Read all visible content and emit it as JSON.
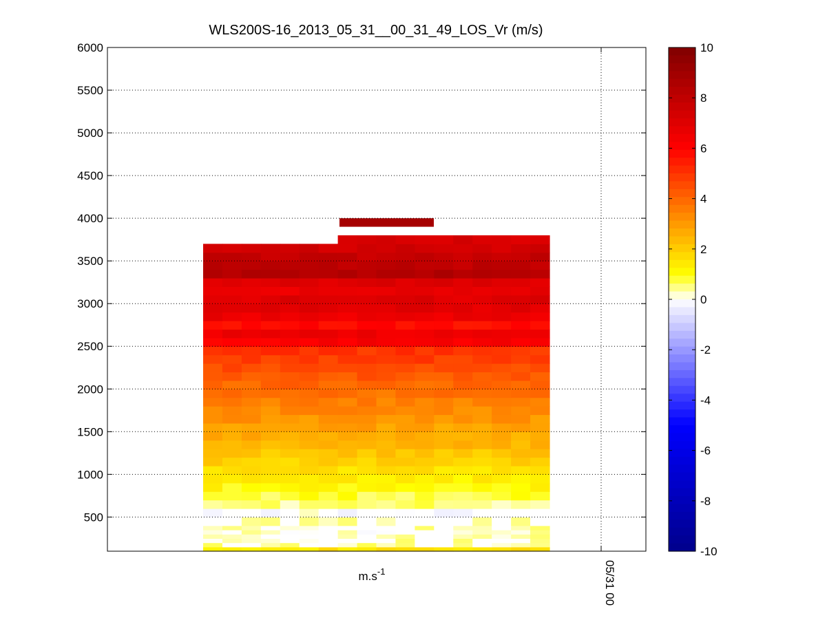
{
  "chart_data": {
    "type": "heatmap",
    "title": "WLS200S-16_2013_05_31__00_31_49_LOS_Vr (m/s)",
    "xlabel": "m.s",
    "xlabel_exponent": "-1",
    "x_tick_labels": [
      "05/31 00"
    ],
    "ylim": [
      100,
      6000
    ],
    "y_ticks": [
      500,
      1000,
      1500,
      2000,
      2500,
      3000,
      3500,
      4000,
      4500,
      5000,
      5500,
      6000
    ],
    "grid": true,
    "colorbar": {
      "range": [
        -10,
        10
      ],
      "ticks": [
        -10,
        -8,
        -6,
        -4,
        -2,
        0,
        2,
        4,
        6,
        8,
        10
      ],
      "colormap": "blue-white-yellow-red",
      "colors": {
        "min": "#00008b",
        "neg": "#0000ff",
        "zero": "#ffffff",
        "pos_low": "#ffff00",
        "pos_mid": "#ff0000",
        "max": "#800000"
      }
    },
    "profile": {
      "altitude_m": [
        100,
        150,
        200,
        250,
        300,
        350,
        400,
        500,
        600,
        700,
        800,
        900,
        1000,
        1100,
        1200,
        1300,
        1400,
        1500,
        1600,
        1700,
        1800,
        1900,
        2000,
        2100,
        2200,
        2300,
        2400,
        2500,
        2600,
        2700,
        2800,
        2900,
        3000,
        3100,
        3200,
        3300,
        3400,
        3500,
        3600,
        3700,
        3800,
        3950
      ],
      "velocity_ms": [
        1.5,
        0.4,
        0.3,
        0.3,
        0.2,
        0.3,
        0.4,
        0.0,
        0.5,
        0.8,
        1.1,
        1.3,
        1.6,
        1.9,
        2.1,
        2.4,
        2.6,
        2.8,
        3.1,
        3.3,
        3.5,
        3.8,
        4.0,
        4.3,
        4.5,
        4.8,
        5.0,
        6.2,
        6.5,
        5.8,
        6.6,
        6.9,
        7.0,
        6.7,
        7.0,
        8.4,
        8.0,
        7.8,
        7.4,
        7.2,
        8.6,
        8.8
      ]
    },
    "data_extent": {
      "columns": 18,
      "left_top_altitude_m": 3700,
      "right_top_altitude_m": 3800,
      "isolated_layer_altitude_m": [
        3900,
        4000
      ],
      "isolated_layer_velocity_ms": 8.8
    }
  }
}
